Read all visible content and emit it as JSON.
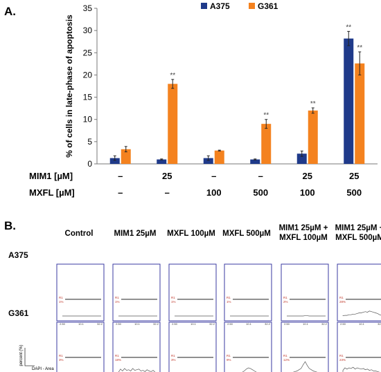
{
  "panel_a_label": "A.",
  "panel_b_label": "B.",
  "colors": {
    "A375": "#1f3a8a",
    "G361": "#f4821f",
    "histo_frame": "#3a3aa0",
    "gate_text": "#c0392b"
  },
  "chart_data": [
    {
      "type": "bar",
      "panel": "A",
      "ylabel": "% of cells in late-phase of apoptosis",
      "ylim": [
        0,
        35
      ],
      "yticks": [
        0,
        5,
        10,
        15,
        20,
        25,
        30,
        35
      ],
      "categories": [
        "1",
        "2",
        "3",
        "4",
        "5",
        "6"
      ],
      "treatment_rows": [
        {
          "label": "MIM1 [µM]",
          "values": [
            "–",
            "25",
            "–",
            "–",
            "25",
            "25"
          ]
        },
        {
          "label": "MXFL [µM]",
          "values": [
            "–",
            "–",
            "100",
            "500",
            "100",
            "500"
          ]
        }
      ],
      "legend_position": "top-center",
      "series": [
        {
          "name": "A375",
          "color": "#1f3a8a",
          "values": [
            1.3,
            1.0,
            1.3,
            1.0,
            2.3,
            28.2
          ],
          "errors": [
            0.5,
            0.1,
            0.5,
            0.1,
            0.6,
            1.6
          ],
          "significance": [
            "",
            "",
            "",
            "",
            "",
            "**"
          ]
        },
        {
          "name": "G361",
          "color": "#f4821f",
          "values": [
            3.3,
            18.0,
            3.0,
            9.0,
            12.0,
            22.6
          ],
          "errors": [
            0.6,
            1.0,
            0.1,
            1.0,
            0.6,
            2.6
          ],
          "significance": [
            "",
            "**",
            "",
            "**",
            "**",
            "**"
          ]
        }
      ]
    },
    {
      "type": "area",
      "panel": "B",
      "columns": [
        "Control",
        "MIM1 25µM",
        "MXFL 100µM",
        "MXFL 500µM",
        "MIM1 25µM +\nMXFL 100µM",
        "MIM1 25µM +\nMXFL 500µM"
      ],
      "rows": [
        {
          "label": "A375",
          "gate_label": "R1",
          "percents": [
            "1%",
            "1%",
            "1%",
            "1%",
            "2%",
            "28%"
          ],
          "profiles": [
            [
              0,
              0,
              0,
              0,
              0,
              0,
              0,
              0,
              0,
              0,
              0,
              0,
              0,
              0,
              0,
              0,
              0,
              0,
              0,
              0
            ],
            [
              0,
              0,
              0,
              0,
              0,
              0,
              0,
              0,
              0,
              0,
              0,
              0,
              0,
              0,
              0,
              0,
              0,
              0,
              0,
              0
            ],
            [
              0,
              0,
              0,
              0,
              0,
              0,
              0,
              0,
              0,
              0,
              0,
              0,
              0,
              0,
              0,
              0,
              0,
              0,
              0,
              0
            ],
            [
              0,
              0,
              0,
              0,
              0,
              0,
              0,
              0,
              0,
              0,
              0,
              0,
              0,
              0,
              0,
              0,
              0,
              0,
              0,
              0
            ],
            [
              0,
              0,
              0,
              0,
              0,
              0,
              0,
              0,
              0,
              0.05,
              0.05,
              0,
              0,
              0,
              0,
              0,
              0,
              0,
              0,
              0
            ],
            [
              0.05,
              0.1,
              0.1,
              0.2,
              0.2,
              0.3,
              0.3,
              0.4,
              0.5,
              0.5,
              0.6,
              0.7,
              0.6,
              0.8,
              0.7,
              0.6,
              0.5,
              0.4,
              0.2,
              0.1
            ]
          ],
          "xticks": [
            "2.50",
            "10.1",
            "32.2"
          ]
        },
        {
          "label": "G361",
          "gate_label": "R1",
          "percents": [
            "3%",
            "18%",
            "3%",
            "9%",
            "12%",
            "23%"
          ],
          "profiles": [
            [
              0,
              0,
              0,
              0,
              0.1,
              0.05,
              0.1,
              0.2,
              0.1,
              0.1,
              0.2,
              0.1,
              0.1,
              0.2,
              0.1,
              0.2,
              0.1,
              0.1,
              0.05,
              0
            ],
            [
              0.3,
              0.8,
              0.5,
              0.9,
              0.6,
              0.7,
              0.5,
              0.9,
              0.6,
              0.7,
              0.8,
              0.5,
              0.6,
              0.4,
              0.7,
              0.5,
              0.4,
              0.6,
              0.3,
              0.2
            ],
            [
              0,
              0.05,
              0,
              0.1,
              0.05,
              0.1,
              0.1,
              0.2,
              0.1,
              0.1,
              0.2,
              0.1,
              0.1,
              0.2,
              0.1,
              0.1,
              0.1,
              0.05,
              0,
              0
            ],
            [
              0,
              0.05,
              0.05,
              0.1,
              0.1,
              0.2,
              0.3,
              0.5,
              0.8,
              1.0,
              0.9,
              0.7,
              0.5,
              0.3,
              0.2,
              0.2,
              0.1,
              0.1,
              0.05,
              0
            ],
            [
              0.1,
              0.2,
              0.2,
              0.3,
              0.4,
              0.5,
              0.7,
              0.9,
              1.5,
              2.0,
              1.4,
              0.9,
              0.7,
              0.5,
              0.4,
              0.3,
              0.2,
              0.2,
              0.1,
              0.05
            ],
            [
              0.6,
              1.0,
              0.8,
              1.0,
              0.9,
              1.1,
              0.8,
              1.0,
              0.9,
              0.8,
              0.9,
              0.7,
              0.8,
              0.6,
              0.7,
              0.5,
              0.5,
              0.4,
              0.3,
              0.2
            ]
          ],
          "xticks": [
            "2.57",
            "10.05",
            "31.8",
            "101"
          ]
        }
      ],
      "ylabel": "percent (%)",
      "xlabel": "DAPI - Area"
    }
  ]
}
